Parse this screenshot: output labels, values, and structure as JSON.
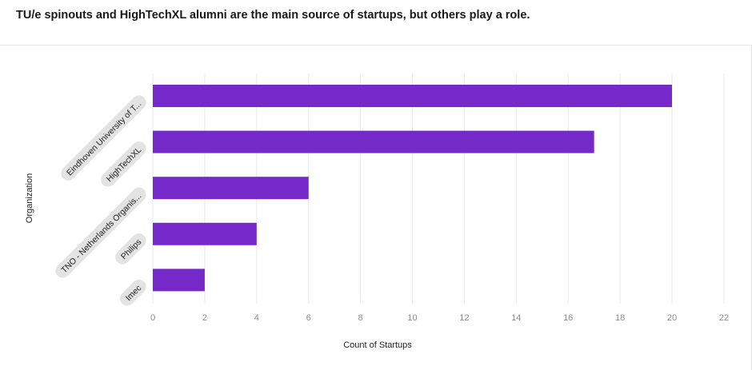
{
  "title": "TU/e spinouts and HighTechXL alumni are the main source of startups, but others play a role.",
  "chart_data": {
    "type": "bar",
    "orientation": "horizontal",
    "categories": [
      "Eindhoven University of T...",
      "HighTechXL",
      "TNO - Netherlands Organis...",
      "Philips",
      "Imec"
    ],
    "values": [
      20,
      17,
      6,
      4,
      2
    ],
    "xlabel": "Count of Startups",
    "ylabel": "Organization",
    "xlim": [
      0,
      22
    ],
    "xticks": [
      0,
      2,
      4,
      6,
      8,
      10,
      12,
      14,
      16,
      18,
      20,
      22
    ],
    "grid": "vertical",
    "bar_color": "#7429c8",
    "label_pill_color": "#e3e3e3"
  }
}
